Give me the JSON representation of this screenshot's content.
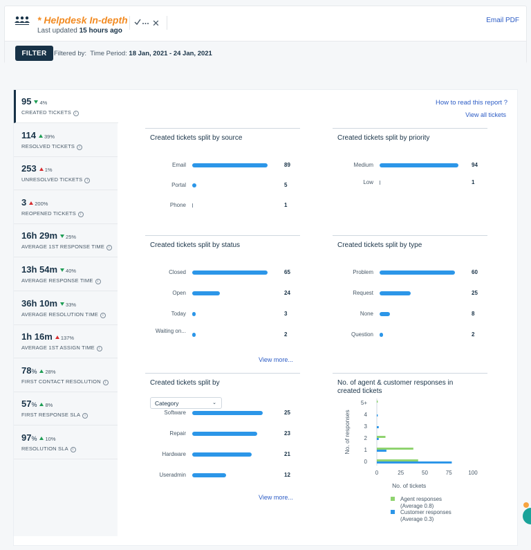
{
  "header": {
    "title": "* Helpdesk In-depth",
    "updated_prefix": "Last updated",
    "updated_value": "15 hours ago",
    "email_pdf": "Email PDF"
  },
  "filter": {
    "button": "FILTER",
    "filtered_by": "Filtered by:",
    "period_label": "Time Period:",
    "period_value": "18 Jan, 2021 - 24 Jan, 2021"
  },
  "links": {
    "how_to": "How to read this report ?",
    "view_all": "View all tickets",
    "view_more": "View more..."
  },
  "metrics": [
    {
      "value": "95",
      "unit": "",
      "change": "4%",
      "dir": "down-good",
      "label": "CREATED TICKETS"
    },
    {
      "value": "114",
      "unit": "",
      "change": "39%",
      "dir": "up-good",
      "label": "RESOLVED TICKETS"
    },
    {
      "value": "253",
      "unit": "",
      "change": "1%",
      "dir": "up-bad",
      "label": "UNRESOLVED TICKETS"
    },
    {
      "value": "3",
      "unit": "",
      "change": "200%",
      "dir": "up-bad",
      "label": "REOPENED TICKETS"
    },
    {
      "value": "16h 29m",
      "unit": "",
      "change": "25%",
      "dir": "down-good",
      "label": "AVERAGE 1ST RESPONSE TIME"
    },
    {
      "value": "13h 54m",
      "unit": "",
      "change": "40%",
      "dir": "down-good",
      "label": "AVERAGE RESPONSE TIME"
    },
    {
      "value": "36h 10m",
      "unit": "",
      "change": "33%",
      "dir": "down-good",
      "label": "AVERAGE RESOLUTION TIME"
    },
    {
      "value": "1h 16m",
      "unit": "",
      "change": "137%",
      "dir": "up-bad",
      "label": "AVERAGE 1ST ASSIGN TIME"
    },
    {
      "value": "78",
      "unit": "%",
      "change": "28%",
      "dir": "up-good",
      "label": "FIRST CONTACT RESOLUTION"
    },
    {
      "value": "57",
      "unit": "%",
      "change": "8%",
      "dir": "up-good",
      "label": "FIRST RESPONSE SLA"
    },
    {
      "value": "97",
      "unit": "%",
      "change": "10%",
      "dir": "up-good",
      "label": "RESOLUTION SLA"
    }
  ],
  "panels": {
    "source": {
      "title": "Created tickets split by source",
      "rows": [
        {
          "label": "Email",
          "value": 89
        },
        {
          "label": "Portal",
          "value": 5
        },
        {
          "label": "Phone",
          "value": 1
        }
      ]
    },
    "priority": {
      "title": "Created tickets split by priority",
      "rows": [
        {
          "label": "Medium",
          "value": 94
        },
        {
          "label": "Low",
          "value": 1
        }
      ]
    },
    "status": {
      "title": "Created tickets split by status",
      "rows": [
        {
          "label": "Closed",
          "value": 65
        },
        {
          "label": "Open",
          "value": 24
        },
        {
          "label": "Today",
          "value": 3
        },
        {
          "label": "Waiting on...",
          "value": 2
        }
      ]
    },
    "type": {
      "title": "Created tickets split by type",
      "rows": [
        {
          "label": "Problem",
          "value": 60
        },
        {
          "label": "Request",
          "value": 25
        },
        {
          "label": "None",
          "value": 8
        },
        {
          "label": "Question",
          "value": 2
        }
      ]
    },
    "category": {
      "title": "Created tickets split by",
      "dropdown": "Category",
      "rows": [
        {
          "label": "Software",
          "value": 25
        },
        {
          "label": "Repair",
          "value": 23
        },
        {
          "label": "Hardware",
          "value": 21
        },
        {
          "label": "Useradmin",
          "value": 12
        }
      ]
    }
  },
  "chart_data": {
    "type": "bar",
    "orientation": "horizontal",
    "title": "No. of agent & customer responses in created tickets",
    "xlabel": "No. of tickets",
    "ylabel": "No. of responses",
    "categories": [
      "0",
      "1",
      "2",
      "3",
      "4",
      "5+"
    ],
    "xlim": [
      0,
      100
    ],
    "xticks": [
      "0",
      "25",
      "50",
      "75",
      "100"
    ],
    "series": [
      {
        "name": "Agent responses",
        "note": "(Average 0.8)",
        "color": "#8fd36f",
        "values": [
          43,
          38,
          9,
          0,
          0,
          1
        ]
      },
      {
        "name": "Customer responses",
        "note": "(Average 0.3)",
        "color": "#2c96e8",
        "values": [
          78,
          10,
          2,
          2,
          1,
          0
        ]
      }
    ],
    "legend": "bottom"
  }
}
